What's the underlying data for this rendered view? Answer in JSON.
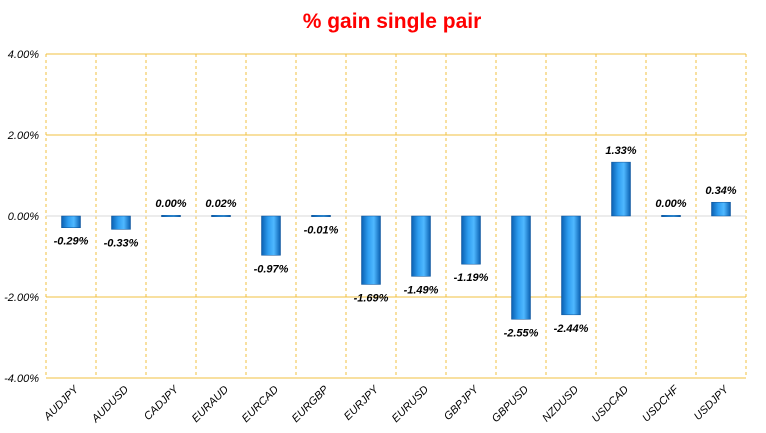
{
  "chart_data": {
    "type": "bar",
    "title": "% gain single pair",
    "title_color": "#ff0000",
    "bar_color": "#1e90ff",
    "grid_color": "#f0c040",
    "grid": true,
    "legend": "none",
    "ylim": [
      -4.0,
      4.0
    ],
    "y_ticks": [
      4.0,
      2.0,
      0.0,
      -2.0,
      -4.0
    ],
    "y_tick_labels": [
      "4.00%",
      "2.00%",
      "0.00%",
      "-2.00%",
      "-4.00%"
    ],
    "categories": [
      "AUDJPY",
      "AUDUSD",
      "CADJPY",
      "EURAUD",
      "EURCAD",
      "EURGBP",
      "EURJPY",
      "EURUSD",
      "GBPJPY",
      "GBPUSD",
      "NZDUSD",
      "USDCAD",
      "USDCHF",
      "USDJPY"
    ],
    "values": [
      -0.29,
      -0.33,
      0.0,
      0.02,
      -0.97,
      -0.01,
      -1.69,
      -1.49,
      -1.19,
      -2.55,
      -2.44,
      1.33,
      0.0,
      0.34
    ],
    "value_labels": [
      "-0.29%",
      "-0.33%",
      "0.00%",
      "0.02%",
      "-0.97%",
      "-0.01%",
      "-1.69%",
      "-1.49%",
      "-1.19%",
      "-2.55%",
      "-2.44%",
      "1.33%",
      "0.00%",
      "0.34%"
    ]
  }
}
